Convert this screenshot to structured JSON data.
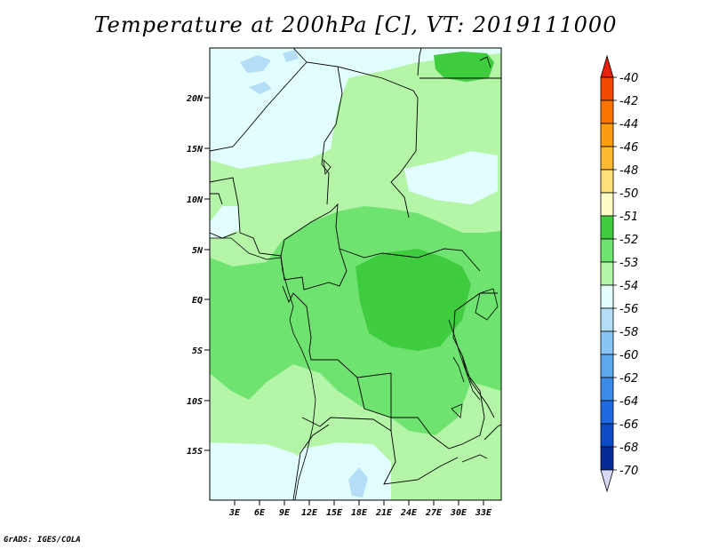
{
  "title": "Temperature at 200hPa [C], VT: 2019111000",
  "credit": "GrADS: IGES/COLA",
  "lat_ticks": [
    "20N",
    "15N",
    "10N",
    "5N",
    "EQ",
    "5S",
    "10S",
    "15S"
  ],
  "lon_ticks": [
    "3E",
    "6E",
    "9E",
    "12E",
    "15E",
    "18E",
    "21E",
    "24E",
    "27E",
    "30E",
    "33E"
  ],
  "colorbar": {
    "labels": [
      "-40",
      "-42",
      "-44",
      "-46",
      "-48",
      "-50",
      "-51",
      "-52",
      "-53",
      "-54",
      "-56",
      "-58",
      "-60",
      "-62",
      "-64",
      "-66",
      "-68",
      "-70"
    ],
    "colors": [
      "#e8200c",
      "#f24a00",
      "#f97400",
      "#fc9c12",
      "#fbb833",
      "#fde07a",
      "#fffcc8",
      "#3fcc3f",
      "#6fe36f",
      "#b4f5a8",
      "#e2fdfd",
      "#b4def8",
      "#8ac4f4",
      "#5ea6ee",
      "#3c8ae8",
      "#1f6ae0",
      "#0d4ac6",
      "#062a98",
      "#04106a"
    ]
  },
  "field_colors": {
    "c52": "#3fcc3f",
    "c53": "#6fe36f",
    "c54": "#b4f5a8",
    "c56": "#e2fdfd",
    "c58": "#b4def8"
  }
}
